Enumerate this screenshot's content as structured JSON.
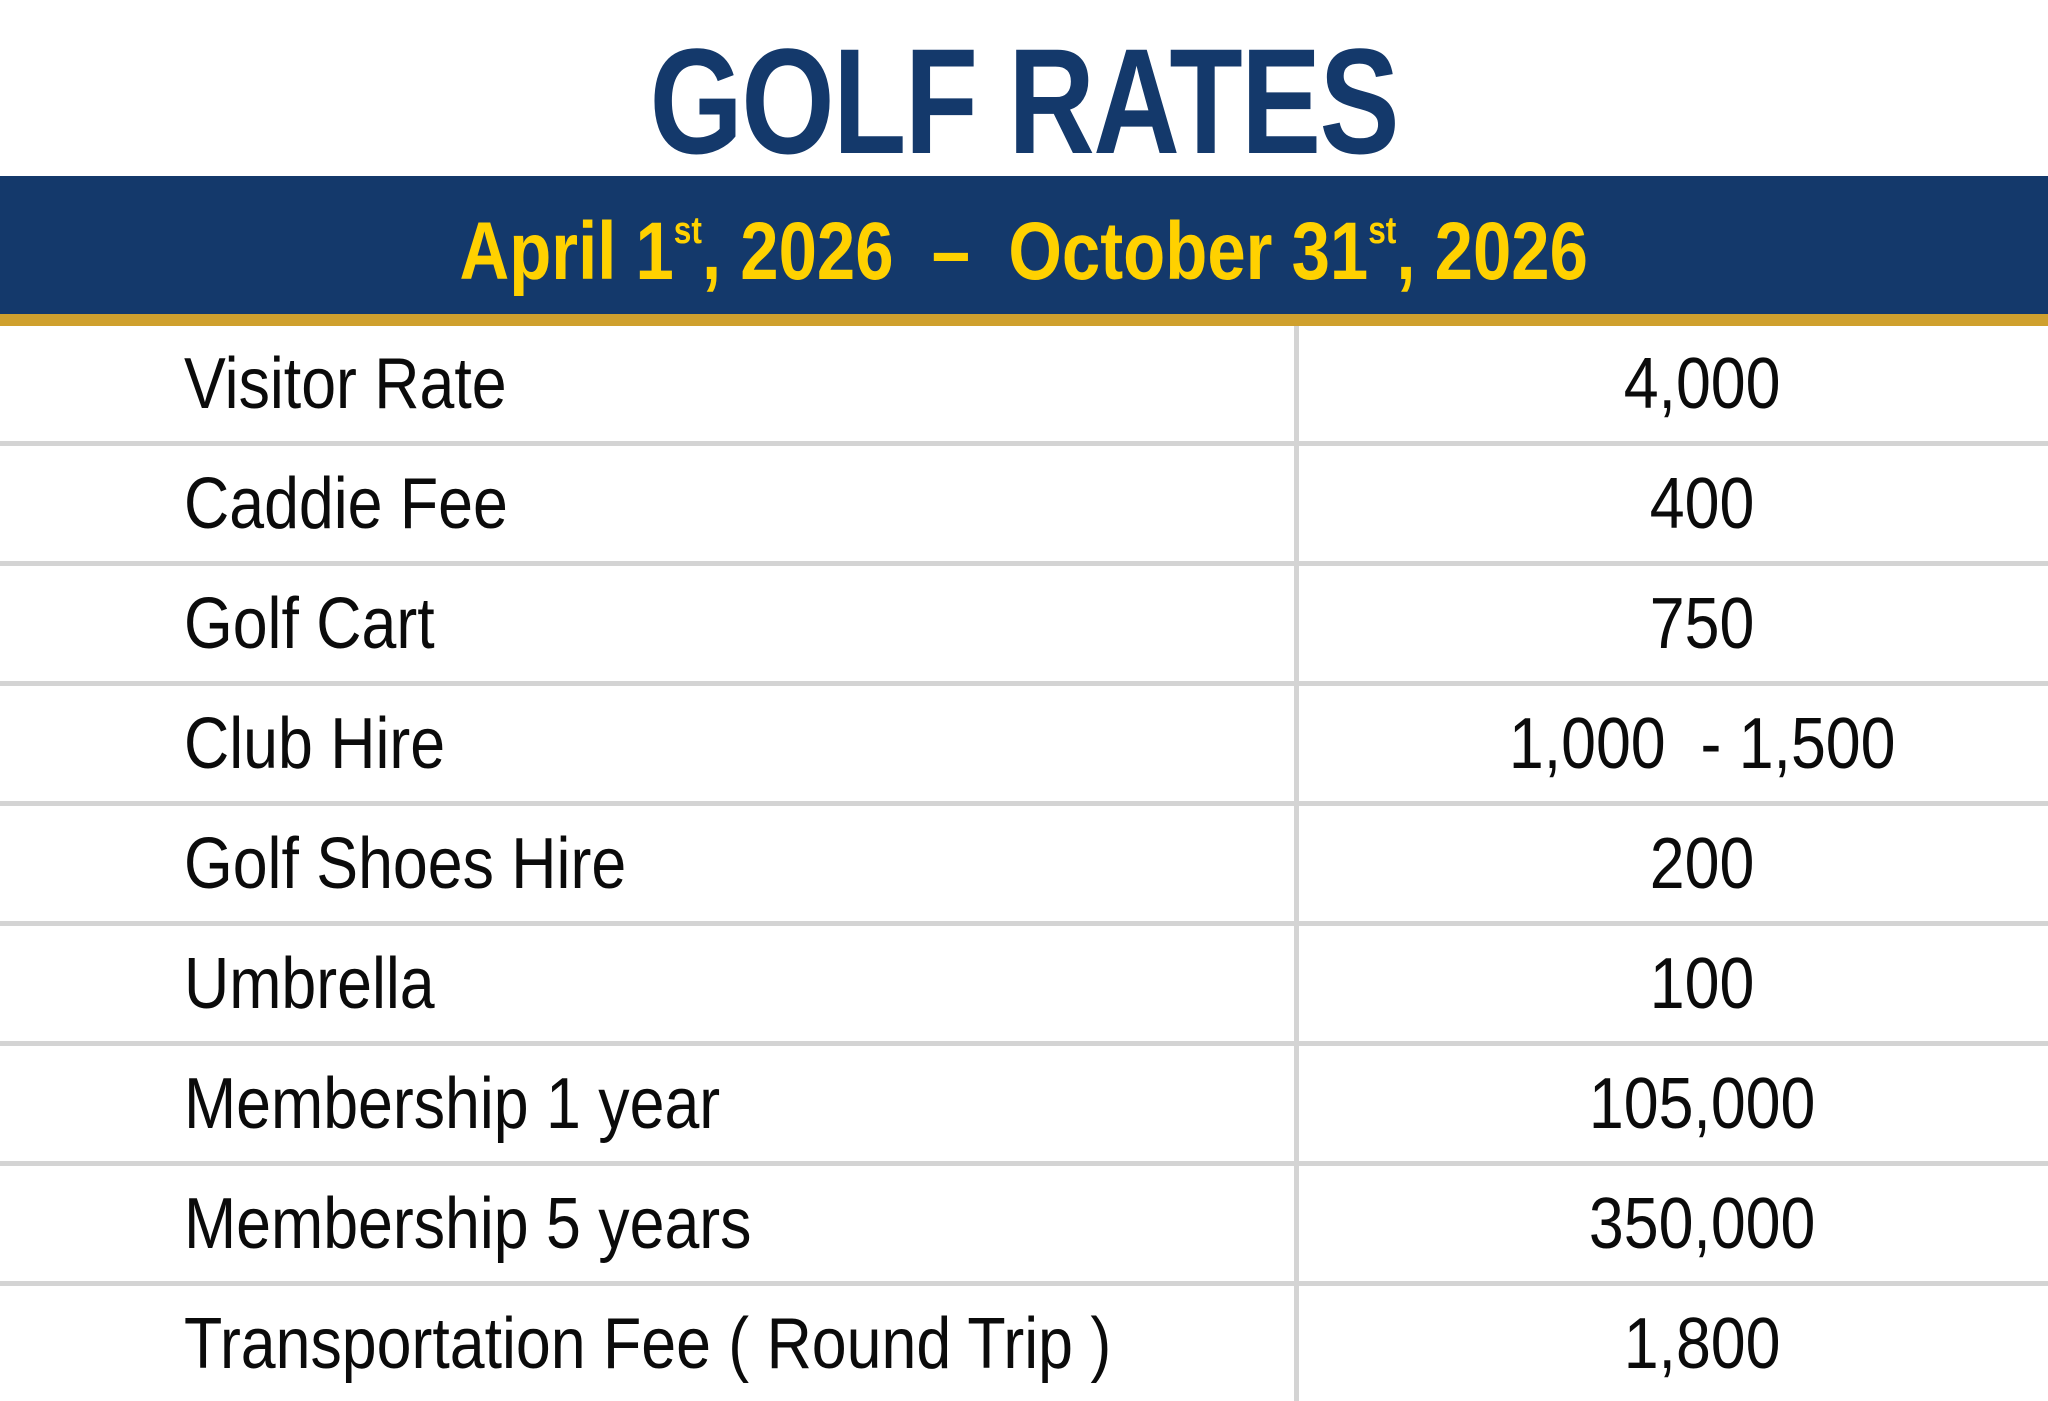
{
  "title": "GOLF RATES",
  "banner": {
    "date_part1": "April 1",
    "date_sup1": "st",
    "date_part2": ", 2026  –  October 31",
    "date_sup2": "st",
    "date_part3": ", 2026"
  },
  "rates": {
    "rows": [
      {
        "label": "Visitor Rate",
        "value": "4,000"
      },
      {
        "label": "Caddie Fee",
        "value": "400"
      },
      {
        "label": "Golf Cart",
        "value": "750"
      },
      {
        "label": "Club Hire",
        "value": "1,000  - 1,500"
      },
      {
        "label": "Golf Shoes Hire",
        "value": "200"
      },
      {
        "label": "Umbrella",
        "value": "100"
      },
      {
        "label": "Membership 1 year",
        "value": "105,000"
      },
      {
        "label": "Membership 5 years",
        "value": "350,000"
      },
      {
        "label": "Transportation Fee ( Round Trip )",
        "value": "1,800"
      }
    ]
  },
  "colors": {
    "navy": "#14396B",
    "yellow": "#FFD100",
    "gold": "#CFA02E",
    "divider": "#D4D4D4",
    "text": "#0B0B0B"
  }
}
